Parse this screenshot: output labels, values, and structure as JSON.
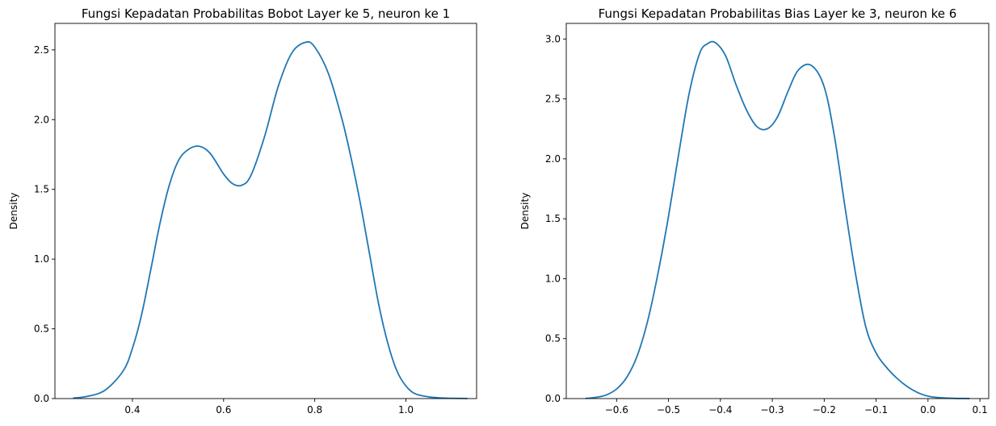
{
  "chart_data": [
    {
      "type": "line",
      "title": "Fungsi Kepadatan Probabilitas Bobot Layer ke 5, neuron ke 1",
      "xlabel": "",
      "ylabel": "Density",
      "xlim": [
        0.23,
        1.155
      ],
      "ylim": [
        0,
        2.69
      ],
      "xticks": [
        "0.4",
        "0.6",
        "0.8",
        "1.0"
      ],
      "yticks": [
        "0.0",
        "0.5",
        "1.0",
        "1.5",
        "2.0",
        "2.5"
      ],
      "grid": false,
      "color": "#1f77b4",
      "series": [
        {
          "x": [
            0.27,
            0.3,
            0.34,
            0.38,
            0.4,
            0.42,
            0.44,
            0.46,
            0.48,
            0.5,
            0.52,
            0.545,
            0.57,
            0.6,
            0.62,
            0.64,
            0.66,
            0.69,
            0.72,
            0.75,
            0.78,
            0.8,
            0.83,
            0.86,
            0.88,
            0.9,
            0.92,
            0.94,
            0.96,
            0.98,
            1.0,
            1.02,
            1.05,
            1.08,
            1.1,
            1.135
          ],
          "y": [
            0.004,
            0.015,
            0.06,
            0.2,
            0.36,
            0.6,
            0.92,
            1.25,
            1.52,
            1.7,
            1.78,
            1.81,
            1.76,
            1.61,
            1.54,
            1.53,
            1.6,
            1.88,
            2.24,
            2.48,
            2.555,
            2.52,
            2.33,
            2.0,
            1.72,
            1.4,
            1.04,
            0.68,
            0.4,
            0.2,
            0.09,
            0.035,
            0.012,
            0.004,
            0.002,
            0.0005
          ]
        }
      ]
    },
    {
      "type": "line",
      "title": "Fungsi Kepadatan Probabilitas Bias Layer ke 3, neuron ke 6",
      "xlabel": "",
      "ylabel": "Density",
      "xlim": [
        -0.697,
        0.117
      ],
      "ylim": [
        0,
        3.13
      ],
      "xticks": [
        "−0.6",
        "−0.5",
        "−0.4",
        "−0.3",
        "−0.2",
        "−0.1",
        "0.0",
        "0.1"
      ],
      "yticks": [
        "0.0",
        "0.5",
        "1.0",
        "1.5",
        "2.0",
        "2.5",
        "3.0"
      ],
      "grid": false,
      "color": "#1f77b4",
      "series": [
        {
          "x": [
            -0.66,
            -0.64,
            -0.62,
            -0.6,
            -0.58,
            -0.56,
            -0.54,
            -0.52,
            -0.5,
            -0.48,
            -0.46,
            -0.44,
            -0.425,
            -0.41,
            -0.39,
            -0.37,
            -0.35,
            -0.33,
            -0.31,
            -0.29,
            -0.27,
            -0.25,
            -0.225,
            -0.2,
            -0.18,
            -0.16,
            -0.14,
            -0.12,
            -0.1,
            -0.08,
            -0.06,
            -0.04,
            -0.02,
            0.0,
            0.02,
            0.05,
            0.08
          ],
          "y": [
            0.001,
            0.01,
            0.03,
            0.08,
            0.18,
            0.36,
            0.65,
            1.05,
            1.52,
            2.05,
            2.55,
            2.88,
            2.96,
            2.97,
            2.86,
            2.62,
            2.41,
            2.27,
            2.25,
            2.35,
            2.56,
            2.74,
            2.78,
            2.6,
            2.18,
            1.6,
            1.05,
            0.6,
            0.38,
            0.26,
            0.17,
            0.1,
            0.05,
            0.02,
            0.008,
            0.002,
            0.0005
          ]
        }
      ]
    }
  ]
}
